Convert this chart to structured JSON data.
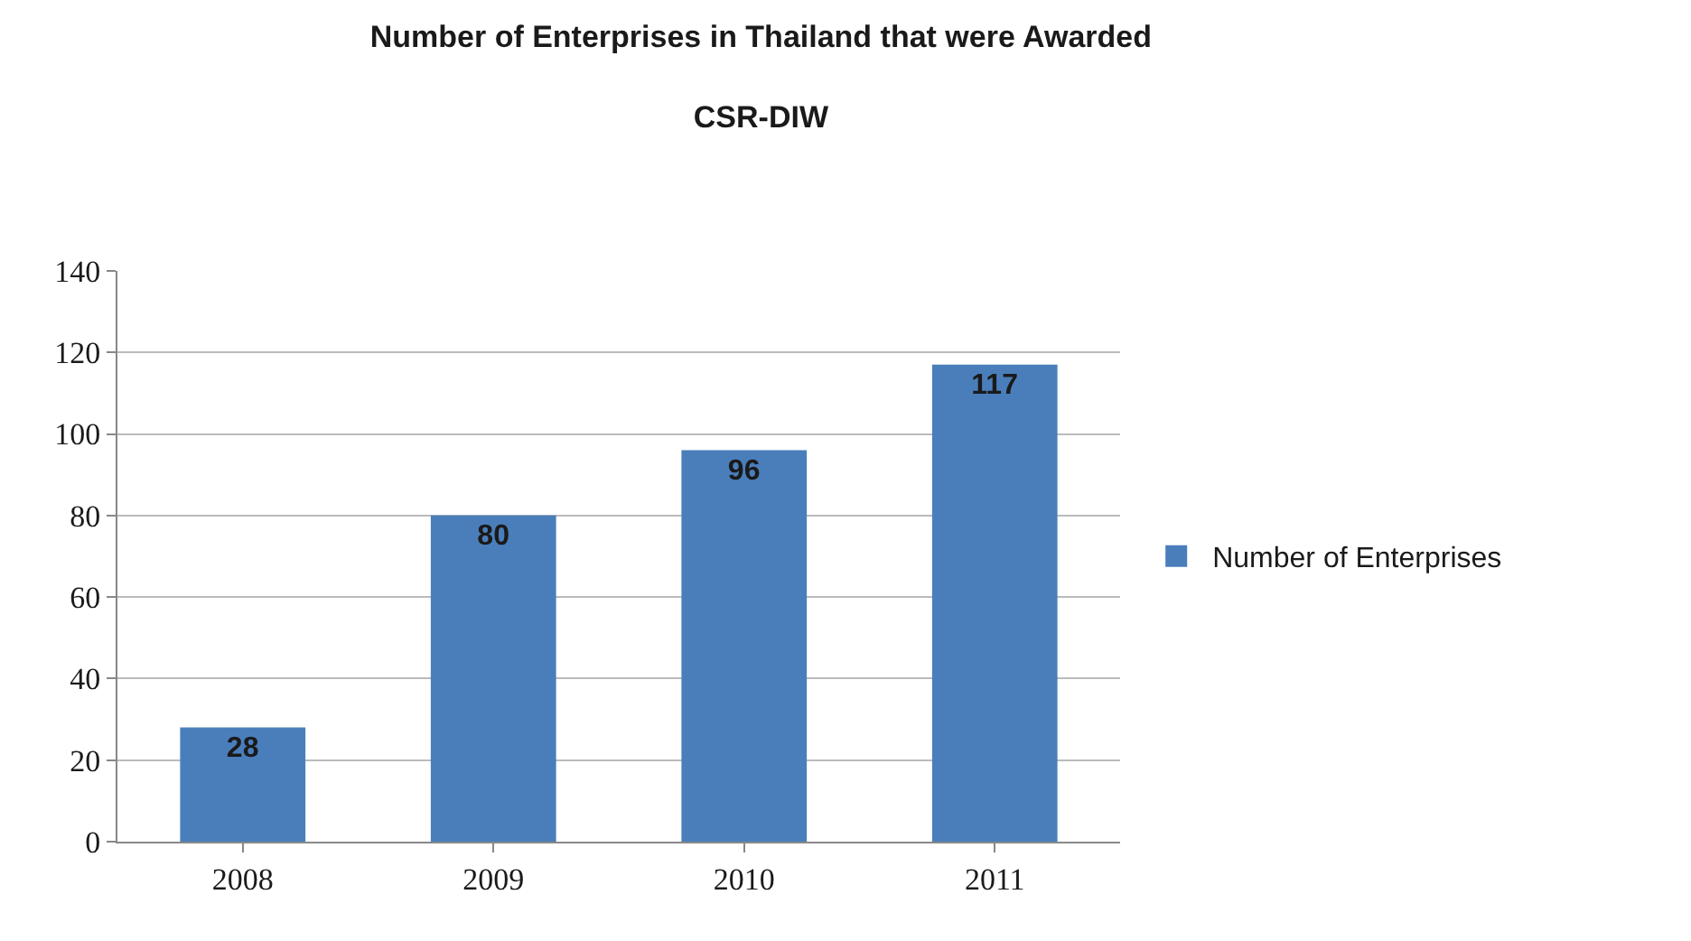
{
  "chart_data": {
    "type": "bar",
    "title": "Number of Enterprises in Thailand that were Awarded\nCSR-DIW",
    "categories": [
      "2008",
      "2009",
      "2010",
      "2011"
    ],
    "series": [
      {
        "name": "Number of Enterprises",
        "color": "#4a7ebb",
        "values": [
          28,
          80,
          96,
          117
        ]
      }
    ],
    "ylim": [
      0,
      140
    ],
    "yticks": [
      0,
      20,
      40,
      60,
      80,
      100,
      120,
      140
    ],
    "grid": "y",
    "legend": "right",
    "data_labels": true
  }
}
